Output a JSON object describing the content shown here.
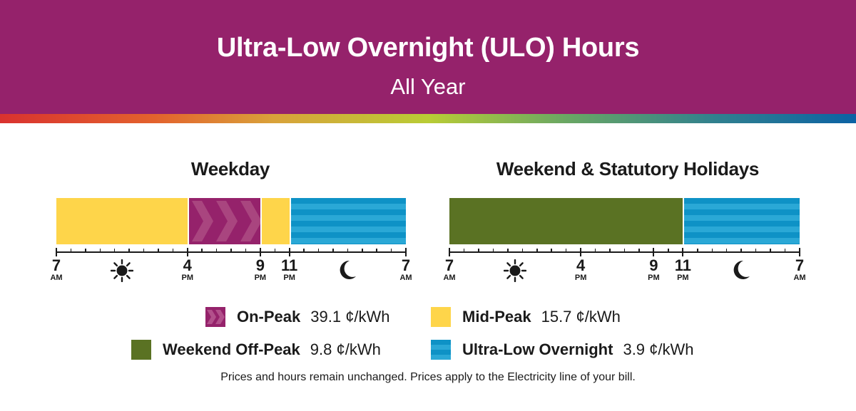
{
  "header": {
    "title": "Ultra-Low Overnight (ULO) Hours",
    "subtitle": "All Year"
  },
  "colors": {
    "header_bg": "#95226b",
    "on_peak": "#95226b",
    "mid_peak": "#fed54a",
    "weekend_off_peak": "#5a7223",
    "ulo": "#0e92c6"
  },
  "chart_data": [
    {
      "type": "timeline",
      "title": "Weekday",
      "x": [
        "7 AM",
        "4 PM",
        "9 PM",
        "11 PM",
        "7 AM"
      ],
      "segments": [
        {
          "period": "Mid-Peak",
          "start_hour": 7,
          "end_hour": 16
        },
        {
          "period": "On-Peak",
          "start_hour": 16,
          "end_hour": 21
        },
        {
          "period": "Mid-Peak",
          "start_hour": 21,
          "end_hour": 23
        },
        {
          "period": "Ultra-Low Overnight",
          "start_hour": 23,
          "end_hour": 31
        }
      ],
      "ticks": [
        {
          "hour": 7,
          "num": "7",
          "ampm": "AM"
        },
        {
          "hour": 16,
          "num": "4",
          "ampm": "PM"
        },
        {
          "hour": 21,
          "num": "9",
          "ampm": "PM"
        },
        {
          "hour": 23,
          "num": "11",
          "ampm": "PM"
        },
        {
          "hour": 31,
          "num": "7",
          "ampm": "AM"
        }
      ],
      "icons": [
        "sun-icon",
        "moon-icon"
      ]
    },
    {
      "type": "timeline",
      "title": "Weekend & Statutory Holidays",
      "x": [
        "7 AM",
        "4 PM",
        "9 PM",
        "11 PM",
        "7 AM"
      ],
      "segments": [
        {
          "period": "Weekend Off-Peak",
          "start_hour": 7,
          "end_hour": 23
        },
        {
          "period": "Ultra-Low Overnight",
          "start_hour": 23,
          "end_hour": 31
        }
      ],
      "ticks": [
        {
          "hour": 7,
          "num": "7",
          "ampm": "AM"
        },
        {
          "hour": 16,
          "num": "4",
          "ampm": "PM"
        },
        {
          "hour": 21,
          "num": "9",
          "ampm": "PM"
        },
        {
          "hour": 23,
          "num": "11",
          "ampm": "PM"
        },
        {
          "hour": 31,
          "num": "7",
          "ampm": "AM"
        }
      ],
      "icons": [
        "sun-icon",
        "moon-icon"
      ]
    }
  ],
  "legend": [
    {
      "name": "On-Peak",
      "price": "39.1 ¢/kWh",
      "rate": 39.1
    },
    {
      "name": "Mid-Peak",
      "price": "15.7 ¢/kWh",
      "rate": 15.7
    },
    {
      "name": "Weekend Off-Peak",
      "price": "9.8 ¢/kWh",
      "rate": 9.8
    },
    {
      "name": "Ultra-Low Overnight",
      "price": "3.9 ¢/kWh",
      "rate": 3.9
    }
  ],
  "footnote": "Prices and hours remain unchanged. Prices apply to the Electricity line of your bill."
}
